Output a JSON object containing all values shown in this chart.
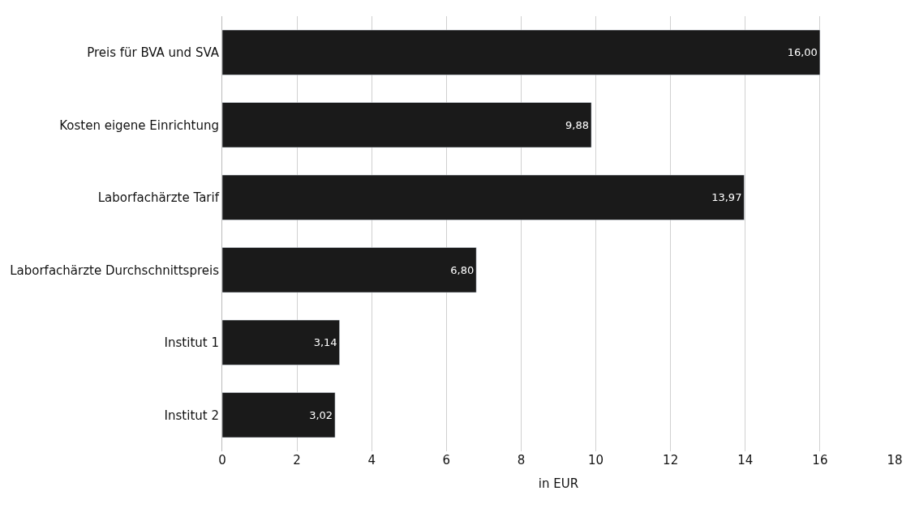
{
  "chart_data": {
    "type": "bar",
    "orientation": "horizontal",
    "xlabel": "in EUR",
    "categories": [
      "Preis für BVA und SVA",
      "Kosten eigene Einrichtung",
      "Laborfachärzte Tarif",
      "Laborfachärzte Durchschnittspreis",
      "Institut 1",
      "Institut 2"
    ],
    "values": [
      16.0,
      9.88,
      13.97,
      6.8,
      3.14,
      3.02
    ],
    "value_labels": [
      "16,00",
      "9,88",
      "13,97",
      "6,80",
      "3,14",
      "3,02"
    ],
    "color": "#1a1a1a",
    "xlim": [
      0,
      18
    ],
    "xticks": [
      0,
      2,
      4,
      6,
      {
        "value": 8,
        "label": "8"
      },
      10,
      12,
      14,
      16,
      18
    ],
    "grid": "x",
    "legend": false
  }
}
